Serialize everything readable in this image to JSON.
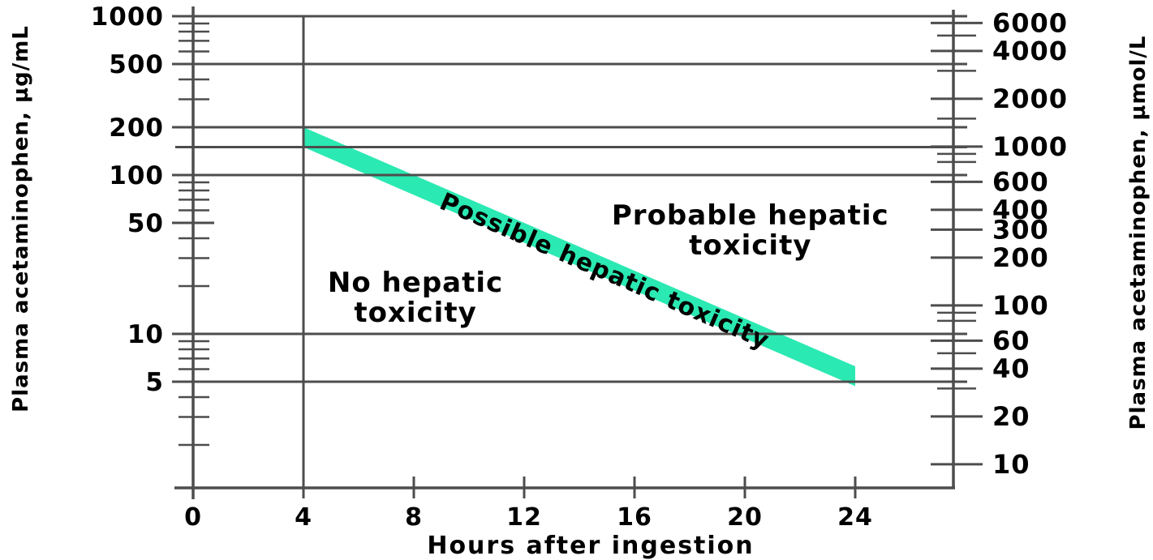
{
  "chart_data": {
    "type": "area",
    "xlabel": "Hours after ingestion",
    "ylabel_left": "Plasma acetaminophen, µg/mL",
    "ylabel_right": "Plasma acetaminophen, µmol/L",
    "x_axis": {
      "ticks": [
        0,
        4,
        8,
        12,
        16,
        20,
        24
      ],
      "range_hours": [
        0,
        27.6
      ]
    },
    "y_axis_left": {
      "scale": "log",
      "unit": "µg/mL",
      "range": [
        1.07,
        1000
      ],
      "labeled_ticks": [
        1000,
        500,
        200,
        100,
        50,
        10,
        5
      ],
      "minor_ticks": [
        900,
        800,
        700,
        600,
        400,
        300,
        150,
        90,
        80,
        70,
        60,
        40,
        30,
        20,
        9,
        8,
        7,
        6,
        4,
        3,
        2
      ]
    },
    "y_axis_right": {
      "scale": "log",
      "unit": "µmol/L",
      "labeled_ticks": [
        6000,
        4000,
        2000,
        1000,
        600,
        400,
        300,
        200,
        100,
        60,
        40,
        20,
        10
      ],
      "minor_ticks": [
        5000,
        3000,
        1500,
        900,
        800,
        90,
        80,
        50,
        30
      ],
      "umol_per_ugml": 6.62
    },
    "gridlines_ugml": [
      1000,
      500,
      200,
      150,
      100,
      10,
      5
    ],
    "reference_vertical_line_hours": 4,
    "series": [
      {
        "name": "treatment-nomogram-band",
        "type": "band",
        "color": "#2be9b2",
        "upper_line": {
          "x_hours": [
            4,
            24
          ],
          "y_ugml": [
            200,
            6.25
          ]
        },
        "lower_line": {
          "x_hours": [
            4,
            24
          ],
          "y_ugml": [
            150,
            4.69
          ]
        }
      }
    ],
    "annotations": [
      {
        "id": "no",
        "lines": [
          "No hepatic",
          "toxicity"
        ],
        "x_hours": 8.06,
        "y_ugml": 16.7,
        "rotation_deg": 0
      },
      {
        "id": "possible",
        "lines": [
          "Possible hepatic toxicity"
        ],
        "x_hours": 14.9,
        "y_ugml": 24.7,
        "rotation_deg": 23.5
      },
      {
        "id": "probable",
        "lines": [
          "Probable hepatic",
          "toxicity"
        ],
        "x_hours": 20.2,
        "y_ugml": 44.5,
        "rotation_deg": 0
      }
    ],
    "colors": {
      "line": "#4d4d4d",
      "text": "#000000",
      "band": "#2be9b2",
      "background": "#ffffff"
    }
  }
}
